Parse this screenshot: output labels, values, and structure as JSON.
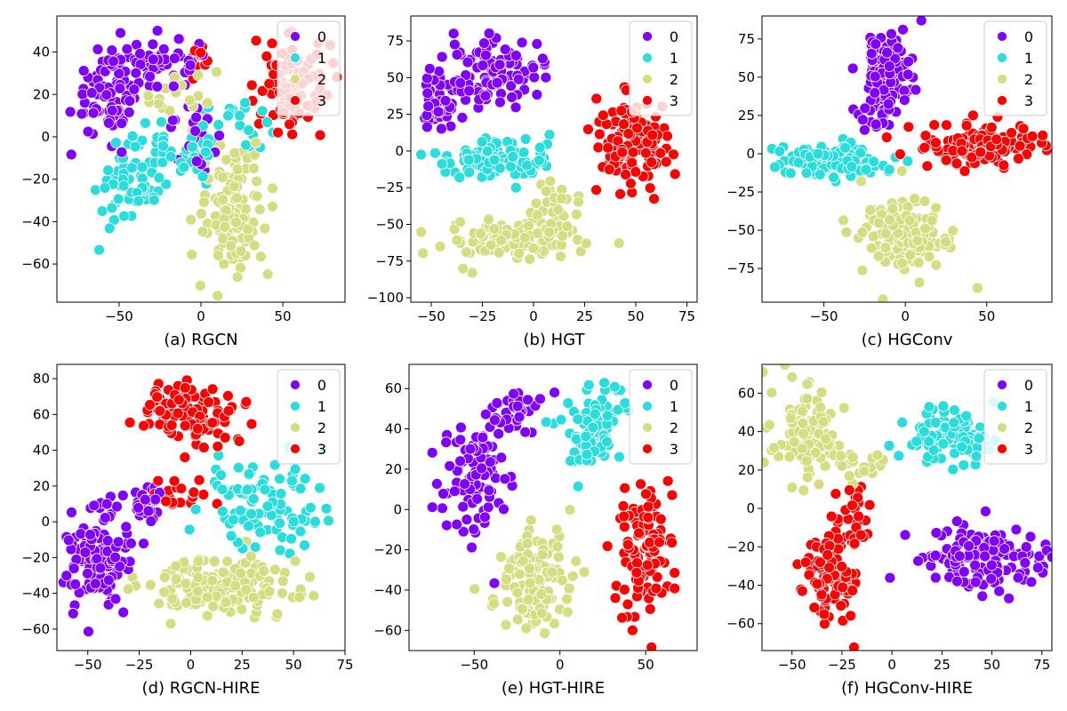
{
  "figure": {
    "legend_classes": [
      "0",
      "1",
      "2",
      "3"
    ],
    "class_colors": [
      "#8000ff",
      "#2adddd",
      "#d4dd80",
      "#ff0000"
    ]
  },
  "chart_data": [
    {
      "type": "scatter",
      "title": "(a) RGCN",
      "xlim": [
        -88,
        88
      ],
      "ylim": [
        -78,
        57
      ],
      "xticks": [
        -50,
        0,
        50
      ],
      "yticks": [
        -60,
        -40,
        -20,
        0,
        20,
        40
      ],
      "legend": "top-right",
      "clusters": [
        {
          "cls": 0,
          "cx": -55,
          "cy": 22,
          "rx": 22,
          "ry": 20,
          "n": 90
        },
        {
          "cls": 0,
          "cx": -20,
          "cy": 35,
          "rx": 22,
          "ry": 10,
          "n": 50
        },
        {
          "cls": 0,
          "cx": -5,
          "cy": 5,
          "rx": 15,
          "ry": 12,
          "n": 25
        },
        {
          "cls": 1,
          "cx": -45,
          "cy": -25,
          "rx": 16,
          "ry": 18,
          "n": 60
        },
        {
          "cls": 1,
          "cx": -15,
          "cy": -10,
          "rx": 25,
          "ry": 14,
          "n": 40
        },
        {
          "cls": 1,
          "cx": 20,
          "cy": 5,
          "rx": 20,
          "ry": 12,
          "n": 25
        },
        {
          "cls": 2,
          "cx": 20,
          "cy": -35,
          "rx": 20,
          "ry": 28,
          "n": 110
        },
        {
          "cls": 2,
          "cx": -10,
          "cy": 20,
          "rx": 18,
          "ry": 12,
          "n": 20
        },
        {
          "cls": 3,
          "cx": 55,
          "cy": 25,
          "rx": 20,
          "ry": 20,
          "n": 100
        },
        {
          "cls": 3,
          "cx": 0,
          "cy": 38,
          "rx": 10,
          "ry": 8,
          "n": 10
        }
      ]
    },
    {
      "type": "scatter",
      "title": "(b) HGT",
      "xlim": [
        -60,
        80
      ],
      "ylim": [
        -103,
        92
      ],
      "xticks": [
        -50,
        -25,
        0,
        25,
        50,
        75
      ],
      "yticks": [
        -100,
        -75,
        -50,
        -25,
        0,
        25,
        50,
        75
      ],
      "legend": "top-right",
      "clusters": [
        {
          "cls": 0,
          "cx": -20,
          "cy": 55,
          "rx": 20,
          "ry": 20,
          "n": 110
        },
        {
          "cls": 0,
          "cx": -45,
          "cy": 30,
          "rx": 10,
          "ry": 15,
          "n": 40
        },
        {
          "cls": 1,
          "cx": -20,
          "cy": -5,
          "rx": 25,
          "ry": 12,
          "n": 110
        },
        {
          "cls": 2,
          "cx": -10,
          "cy": -60,
          "rx": 30,
          "ry": 15,
          "n": 100
        },
        {
          "cls": 2,
          "cx": 10,
          "cy": -40,
          "rx": 10,
          "ry": 20,
          "n": 40
        },
        {
          "cls": 3,
          "cx": 50,
          "cy": 5,
          "rx": 17,
          "ry": 27,
          "n": 130
        }
      ]
    },
    {
      "type": "scatter",
      "title": "(c) HGConv",
      "xlim": [
        -88,
        90
      ],
      "ylim": [
        -97,
        90
      ],
      "xticks": [
        -50,
        0,
        50
      ],
      "yticks": [
        -75,
        -50,
        -25,
        0,
        25,
        50,
        75
      ],
      "legend": "top-right",
      "clusters": [
        {
          "cls": 0,
          "cx": -10,
          "cy": 55,
          "rx": 15,
          "ry": 25,
          "n": 110
        },
        {
          "cls": 0,
          "cx": -20,
          "cy": 25,
          "rx": 10,
          "ry": 12,
          "n": 20
        },
        {
          "cls": 1,
          "cx": -45,
          "cy": -5,
          "rx": 30,
          "ry": 10,
          "n": 110
        },
        {
          "cls": 2,
          "cx": 0,
          "cy": -55,
          "rx": 25,
          "ry": 25,
          "n": 140
        },
        {
          "cls": 3,
          "cx": 45,
          "cy": 5,
          "rx": 35,
          "ry": 13,
          "n": 140
        }
      ]
    },
    {
      "type": "scatter",
      "title": "(d) RGCN-HIRE",
      "xlim": [
        -65,
        75
      ],
      "ylim": [
        -72,
        88
      ],
      "xticks": [
        -50,
        -25,
        0,
        25,
        50,
        75
      ],
      "yticks": [
        -60,
        -40,
        -20,
        0,
        20,
        40,
        60,
        80
      ],
      "legend": "top-right",
      "clusters": [
        {
          "cls": 3,
          "cx": 0,
          "cy": 60,
          "rx": 20,
          "ry": 18,
          "n": 110
        },
        {
          "cls": 0,
          "cx": -45,
          "cy": -20,
          "rx": 15,
          "ry": 28,
          "n": 120
        },
        {
          "cls": 0,
          "cx": -25,
          "cy": 10,
          "rx": 15,
          "ry": 10,
          "n": 30
        },
        {
          "cls": 1,
          "cx": 35,
          "cy": 10,
          "rx": 25,
          "ry": 20,
          "n": 100
        },
        {
          "cls": 2,
          "cx": 15,
          "cy": -35,
          "rx": 35,
          "ry": 15,
          "n": 150
        },
        {
          "cls": 3,
          "cx": -5,
          "cy": 15,
          "rx": 20,
          "ry": 12,
          "n": 20
        }
      ]
    },
    {
      "type": "scatter",
      "title": "(e) HGT-HIRE",
      "xlim": [
        -88,
        80
      ],
      "ylim": [
        -70,
        72
      ],
      "xticks": [
        -50,
        0,
        50
      ],
      "yticks": [
        -60,
        -40,
        -20,
        0,
        20,
        40,
        60
      ],
      "legend": "top-right",
      "clusters": [
        {
          "cls": 0,
          "cx": -50,
          "cy": 15,
          "rx": 18,
          "ry": 28,
          "n": 90
        },
        {
          "cls": 0,
          "cx": -25,
          "cy": 50,
          "rx": 15,
          "ry": 10,
          "n": 35
        },
        {
          "cls": 1,
          "cx": 20,
          "cy": 40,
          "rx": 15,
          "ry": 20,
          "n": 100
        },
        {
          "cls": 2,
          "cx": -15,
          "cy": -35,
          "rx": 18,
          "ry": 22,
          "n": 120
        },
        {
          "cls": 3,
          "cx": 50,
          "cy": -20,
          "rx": 15,
          "ry": 30,
          "n": 120
        }
      ]
    },
    {
      "type": "scatter",
      "title": "(f) HGConv-HIRE",
      "xlim": [
        -65,
        80
      ],
      "ylim": [
        -74,
        75
      ],
      "xticks": [
        -50,
        -25,
        0,
        25,
        50,
        75
      ],
      "yticks": [
        -60,
        -40,
        -20,
        0,
        20,
        40,
        60
      ],
      "legend": "top-right",
      "clusters": [
        {
          "cls": 2,
          "cx": -42,
          "cy": 40,
          "rx": 16,
          "ry": 22,
          "n": 110
        },
        {
          "cls": 2,
          "cx": -15,
          "cy": 20,
          "rx": 12,
          "ry": 8,
          "n": 20
        },
        {
          "cls": 1,
          "cx": 30,
          "cy": 38,
          "rx": 20,
          "ry": 12,
          "n": 110
        },
        {
          "cls": 0,
          "cx": 45,
          "cy": -25,
          "rx": 28,
          "ry": 15,
          "n": 150
        },
        {
          "cls": 3,
          "cx": -30,
          "cy": -35,
          "rx": 12,
          "ry": 25,
          "n": 100
        },
        {
          "cls": 3,
          "cx": -20,
          "cy": -5,
          "rx": 10,
          "ry": 15,
          "n": 30
        }
      ]
    }
  ]
}
